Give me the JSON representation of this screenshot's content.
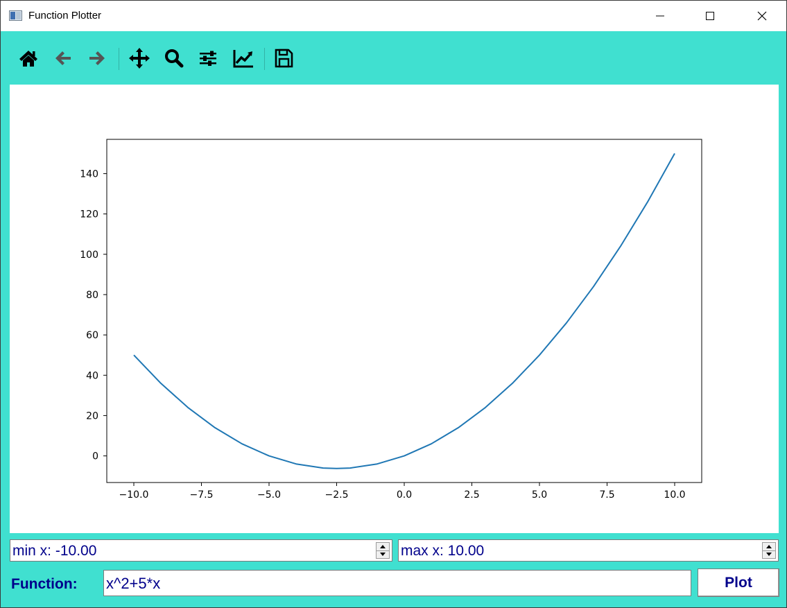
{
  "window": {
    "title": "Function Plotter"
  },
  "toolbar": {
    "icons": [
      "home-icon",
      "back-arrow-icon",
      "forward-arrow-icon",
      "pan-icon",
      "zoom-icon",
      "configure-subplots-icon",
      "edit-axis-icon",
      "save-icon"
    ]
  },
  "controls": {
    "min_x": "min x: -10.00",
    "max_x": "max x: 10.00",
    "function_label": "Function:",
    "function_value": "x^2+5*x",
    "plot_label": "Plot"
  },
  "colors": {
    "background": "#40e0d0",
    "line": "#1f77b4",
    "text_accent": "#00008b"
  },
  "chart_data": {
    "type": "line",
    "title": "",
    "xlabel": "",
    "ylabel": "",
    "function": "x^2+5*x",
    "xlim": [
      -11,
      11
    ],
    "ylim": [
      -13.2,
      157
    ],
    "xticks": [
      -10.0,
      -7.5,
      -5.0,
      -2.5,
      0.0,
      2.5,
      5.0,
      7.5,
      10.0
    ],
    "xtick_labels": [
      "−10.0",
      "−7.5",
      "−5.0",
      "−2.5",
      "0.0",
      "2.5",
      "5.0",
      "7.5",
      "10.0"
    ],
    "yticks": [
      0,
      20,
      40,
      60,
      80,
      100,
      120,
      140
    ],
    "ytick_labels": [
      "0",
      "20",
      "40",
      "60",
      "80",
      "100",
      "120",
      "140"
    ],
    "x_range": [
      -10,
      10
    ],
    "series": [
      {
        "x": [
          -10,
          -9,
          -8,
          -7,
          -6,
          -5,
          -4,
          -3,
          -2.5,
          -2,
          -1,
          0,
          1,
          2,
          3,
          4,
          5,
          6,
          7,
          8,
          9,
          10
        ],
        "y": [
          50,
          36,
          24,
          14,
          6,
          0,
          -4,
          -6,
          -6.25,
          -6,
          -4,
          0,
          6,
          14,
          24,
          36,
          50,
          66,
          84,
          104,
          126,
          150
        ]
      }
    ],
    "grid": false,
    "legend": "none"
  }
}
